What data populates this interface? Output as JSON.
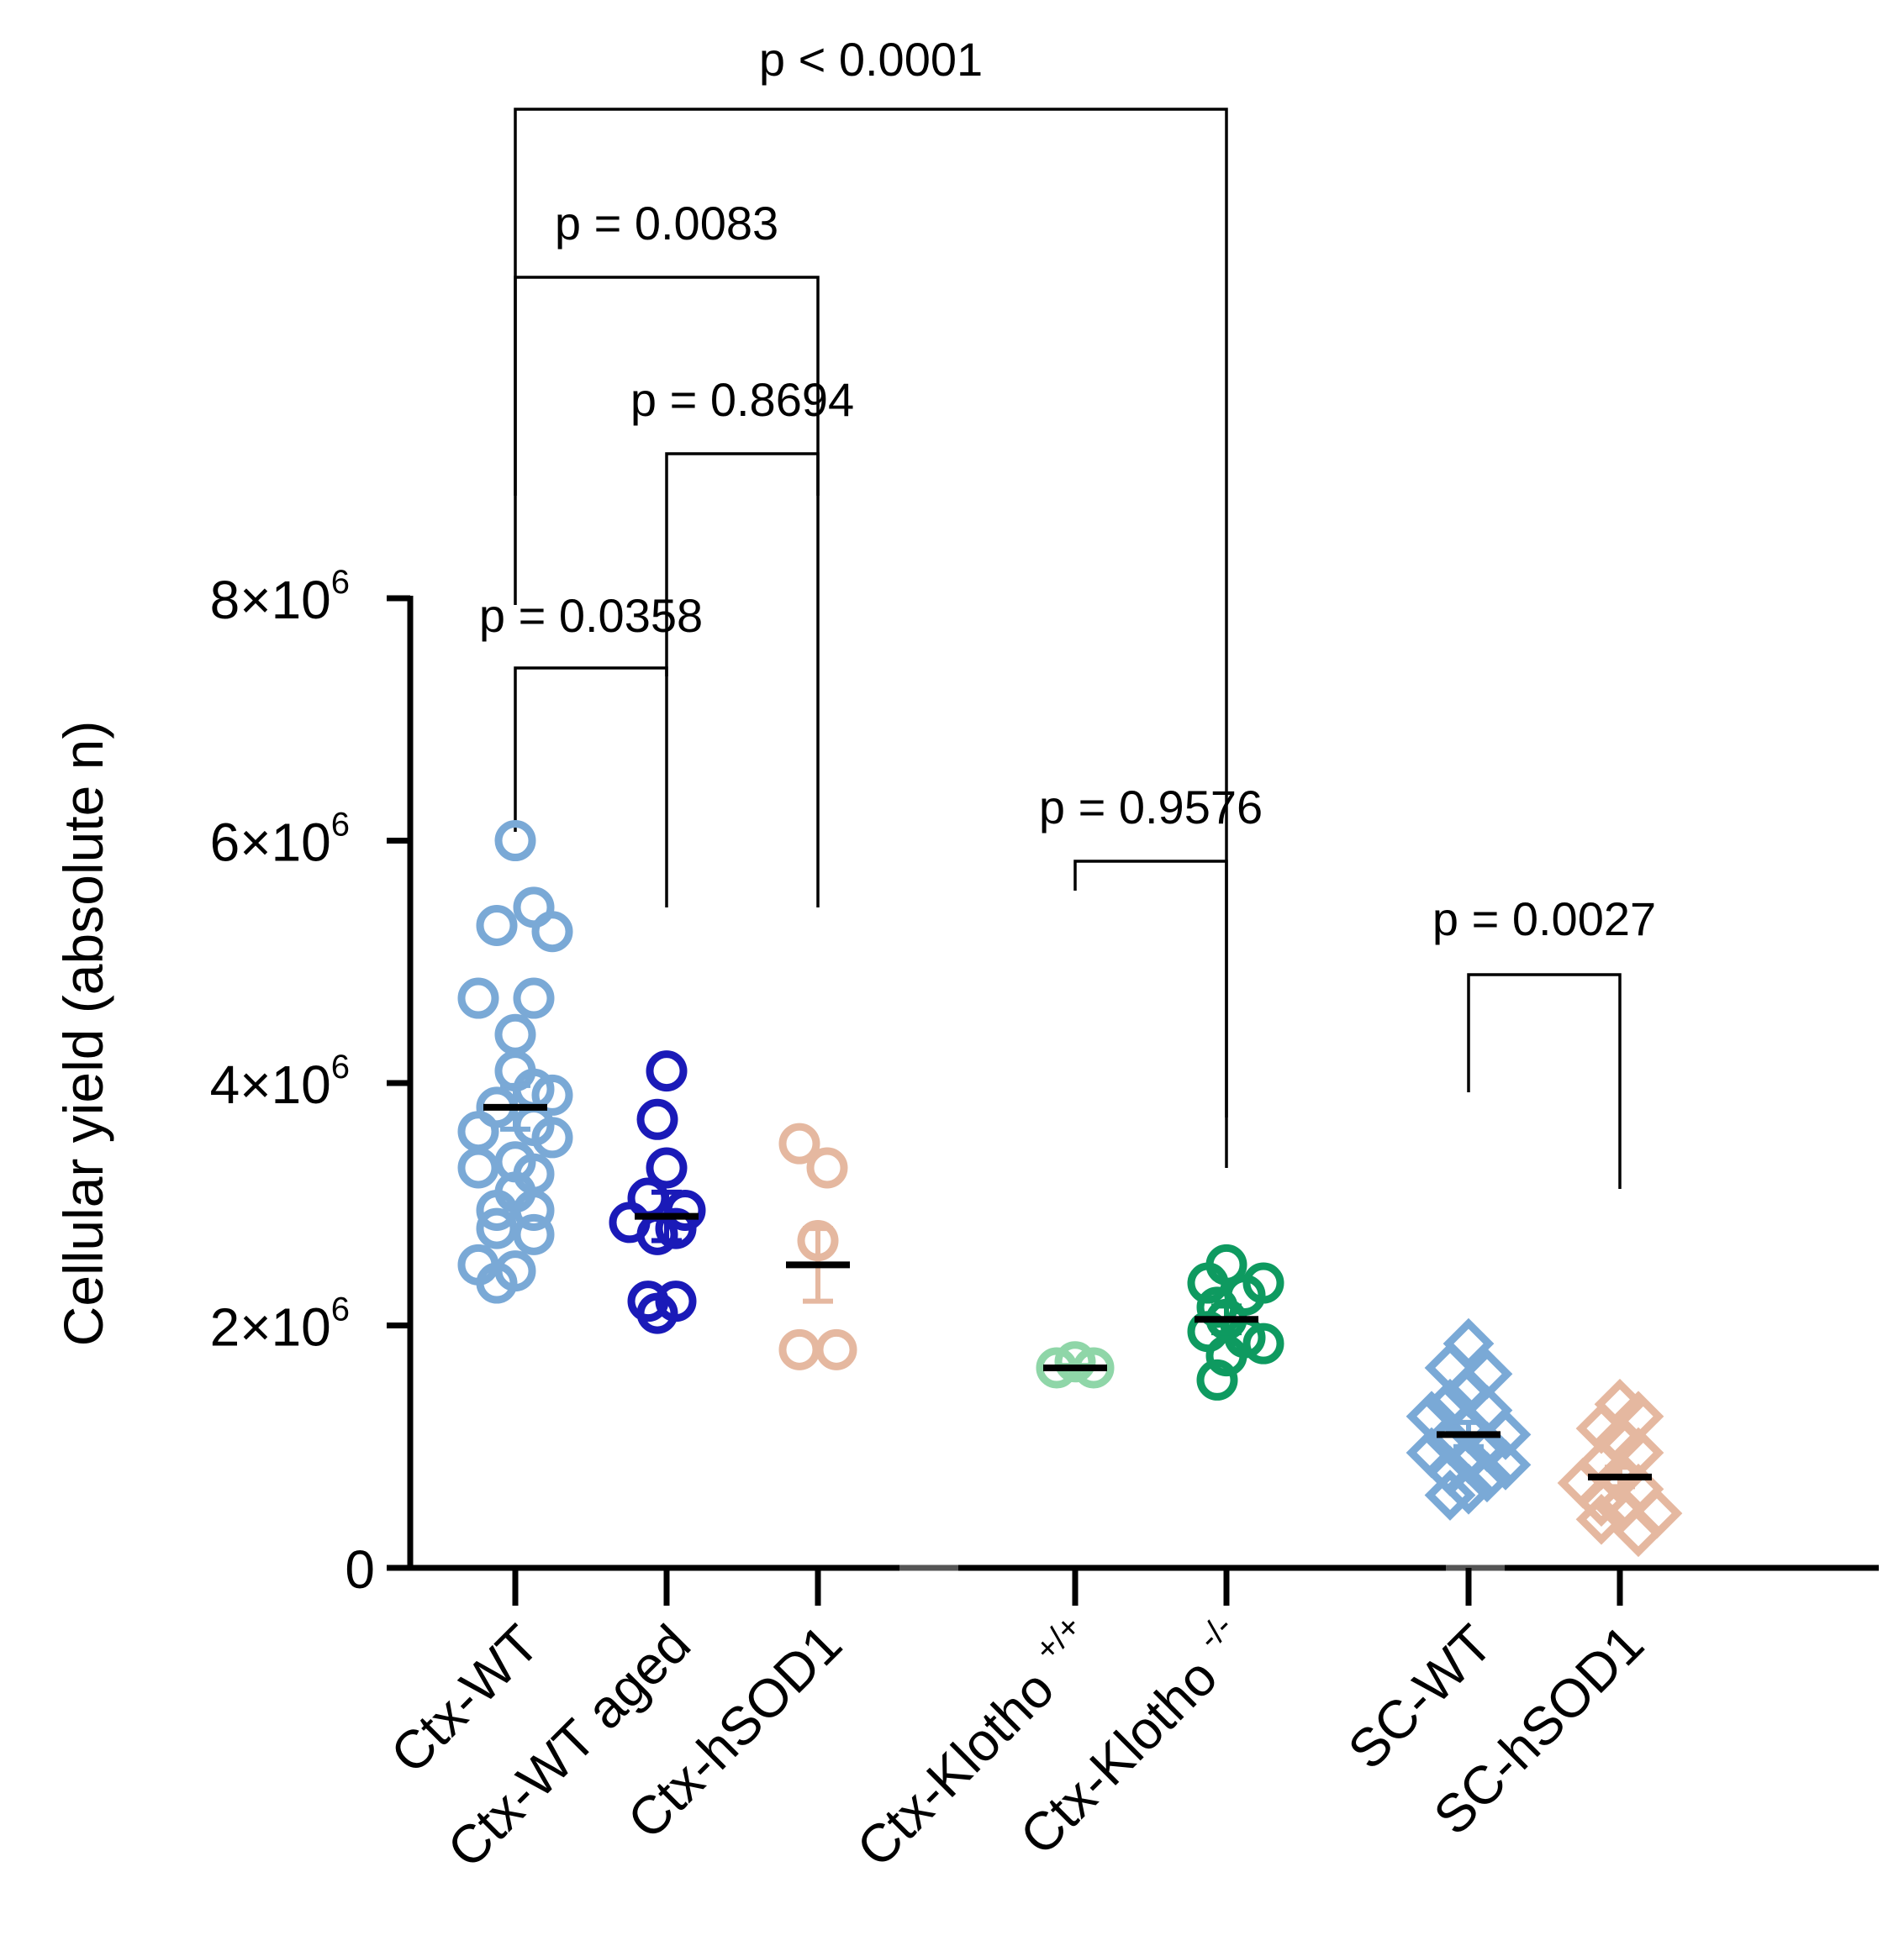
{
  "chart_data": {
    "type": "scatter",
    "title": "",
    "ylabel": "Cellular yield (absolute n)",
    "xlabel": "",
    "ylim": [
      0,
      8000000
    ],
    "yticks": [
      {
        "value": 0,
        "base": "0",
        "exp": ""
      },
      {
        "value": 2000000,
        "base": "2×10",
        "exp": "6"
      },
      {
        "value": 4000000,
        "base": "4×10",
        "exp": "6"
      },
      {
        "value": 6000000,
        "base": "6×10",
        "exp": "6"
      },
      {
        "value": 8000000,
        "base": "8×10",
        "exp": "6"
      }
    ],
    "groups": [
      {
        "name": "Ctx-WT",
        "label": "Ctx-WT",
        "sup": "",
        "slot": 0,
        "color": "#7aa9d6",
        "marker": "circle",
        "mean": 3800000,
        "sem": 180000,
        "points": [
          [
            0,
            6000000
          ],
          [
            -1,
            5300000
          ],
          [
            1,
            5450000
          ],
          [
            2,
            5250000
          ],
          [
            -2,
            4700000
          ],
          [
            1,
            4700000
          ],
          [
            0,
            4400000
          ],
          [
            0,
            4100000
          ],
          [
            1,
            3950000
          ],
          [
            2,
            3900000
          ],
          [
            -1,
            3800000
          ],
          [
            1,
            3650000
          ],
          [
            -2,
            3600000
          ],
          [
            2,
            3550000
          ],
          [
            0,
            3350000
          ],
          [
            -2,
            3300000
          ],
          [
            1,
            3250000
          ],
          [
            0,
            3100000
          ],
          [
            -1,
            2950000
          ],
          [
            1,
            2950000
          ],
          [
            -1,
            2800000
          ],
          [
            1,
            2750000
          ],
          [
            -2,
            2500000
          ],
          [
            0,
            2450000
          ],
          [
            -1,
            2350000
          ]
        ]
      },
      {
        "name": "Ctx-WT aged",
        "label": "Ctx-WT aged",
        "sup": "",
        "slot": 1,
        "color": "#1a1ab8",
        "marker": "circle",
        "mean": 2900000,
        "sem": 200000,
        "points": [
          [
            0,
            4100000
          ],
          [
            -0.5,
            3700000
          ],
          [
            0,
            3300000
          ],
          [
            -1,
            3050000
          ],
          [
            1,
            2950000
          ],
          [
            -2,
            2850000
          ],
          [
            0.5,
            2800000
          ],
          [
            -0.5,
            2750000
          ],
          [
            -1,
            2200000
          ],
          [
            0.5,
            2200000
          ],
          [
            -0.5,
            2100000
          ]
        ]
      },
      {
        "name": "Ctx-hSOD1",
        "label": "Ctx-hSOD1",
        "sup": "",
        "slot": 2,
        "color": "#e5b8a0",
        "marker": "circle",
        "mean": 2500000,
        "sem": 300000,
        "points": [
          [
            -1,
            3500000
          ],
          [
            0.5,
            3300000
          ],
          [
            0,
            2700000
          ],
          [
            -1,
            1800000
          ],
          [
            1,
            1800000
          ]
        ]
      },
      {
        "name": "Ctx-Klotho +/+",
        "label": "Ctx-Klotho ",
        "sup": "+/+",
        "slot": 3.7,
        "color": "#8fd6a8",
        "marker": "circle",
        "mean": 1650000,
        "sem": 20000,
        "points": [
          [
            -1,
            1650000
          ],
          [
            0,
            1700000
          ],
          [
            1,
            1650000
          ]
        ]
      },
      {
        "name": "Ctx-Klotho -/-",
        "label": "Ctx-Klotho ",
        "sup": "-/-",
        "slot": 4.7,
        "color": "#0e9a60",
        "marker": "circle",
        "mean": 2050000,
        "sem": 110000,
        "points": [
          [
            0,
            2500000
          ],
          [
            -1,
            2350000
          ],
          [
            2,
            2350000
          ],
          [
            1,
            2250000
          ],
          [
            -0.5,
            2150000
          ],
          [
            0,
            2050000
          ],
          [
            -1,
            1950000
          ],
          [
            1,
            1900000
          ],
          [
            2,
            1850000
          ],
          [
            0,
            1750000
          ],
          [
            -0.5,
            1550000
          ]
        ]
      },
      {
        "name": "SC-WT",
        "label": "SC-WT",
        "sup": "",
        "slot": 6.3,
        "color": "#7aa9d6",
        "marker": "diamond",
        "mean": 1100000,
        "sem": 100000,
        "points": [
          [
            0,
            1850000
          ],
          [
            -1,
            1650000
          ],
          [
            1,
            1600000
          ],
          [
            0,
            1450000
          ],
          [
            -1,
            1350000
          ],
          [
            1,
            1300000
          ],
          [
            -2,
            1250000
          ],
          [
            0,
            1150000
          ],
          [
            2,
            1100000
          ],
          [
            -1,
            1050000
          ],
          [
            1,
            1000000
          ],
          [
            -2,
            950000
          ],
          [
            0,
            900000
          ],
          [
            2,
            850000
          ],
          [
            -1,
            800000
          ],
          [
            1,
            750000
          ],
          [
            0,
            650000
          ],
          [
            -1,
            600000
          ]
        ]
      },
      {
        "name": "SC-hSOD1",
        "label": "SC-hSOD1",
        "sup": "",
        "slot": 7.3,
        "color": "#e5b8a0",
        "marker": "diamond",
        "mean": 750000,
        "sem": 80000,
        "points": [
          [
            0,
            1350000
          ],
          [
            1,
            1250000
          ],
          [
            -1,
            1150000
          ],
          [
            0,
            1050000
          ],
          [
            1,
            950000
          ],
          [
            -1,
            850000
          ],
          [
            0,
            750000
          ],
          [
            -2,
            700000
          ],
          [
            1,
            650000
          ],
          [
            -1,
            550000
          ],
          [
            0,
            500000
          ],
          [
            2,
            450000
          ],
          [
            -1,
            400000
          ],
          [
            1,
            300000
          ]
        ]
      }
    ],
    "comparisons": [
      {
        "from": 0,
        "to": 4,
        "p": "p < 0.0001"
      },
      {
        "from": 0,
        "to": 2,
        "p": "p = 0.0083"
      },
      {
        "from": 1,
        "to": 2,
        "p": "p = 0.8694"
      },
      {
        "from": 0,
        "to": 1,
        "p": "p = 0.0358"
      },
      {
        "from": 3,
        "to": 4,
        "p": "p = 0.9576"
      },
      {
        "from": 5,
        "to": 6,
        "p": "p = 0.0027"
      }
    ]
  }
}
